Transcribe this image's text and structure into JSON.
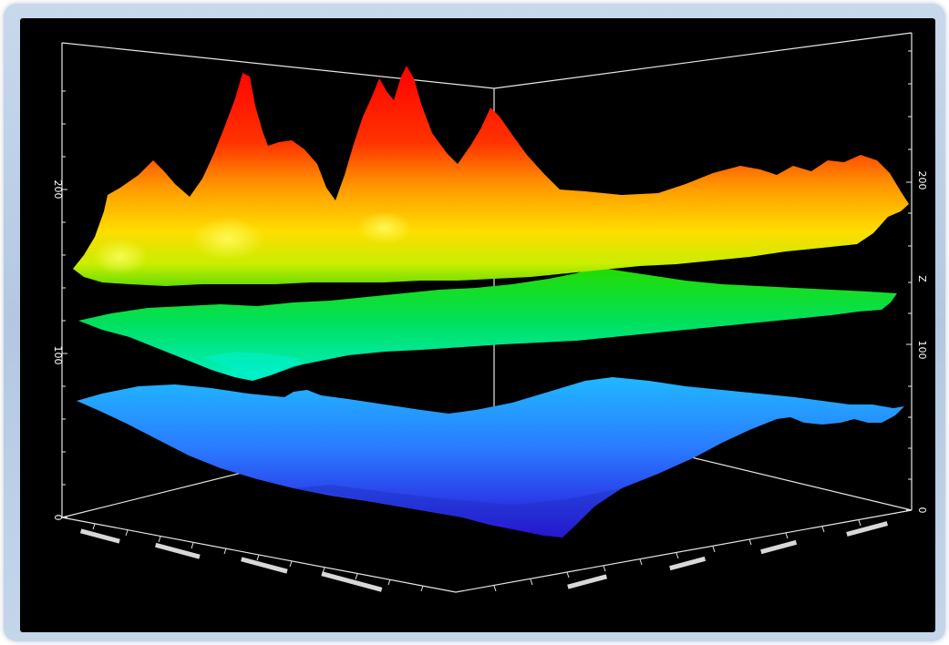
{
  "chart_data": {
    "type": "surface",
    "title": "",
    "surfaces": [
      {
        "name": "",
        "color_from": "#ffd400",
        "color_to": "#ff0000"
      },
      {
        "name": "",
        "color_from": "#00ffcc",
        "color_to": "#00cc00"
      },
      {
        "name": "",
        "color_from": "#2010d0",
        "color_to": "#20b0ff"
      }
    ],
    "z_axis": {
      "label": "Z",
      "range": [
        0,
        250
      ],
      "left_ticks": [
        "0",
        "100",
        "200"
      ],
      "right_ticks": [
        "0",
        "100",
        "200"
      ]
    },
    "x_axis": {
      "tick_labels": [
        "",
        "",
        "",
        ""
      ]
    },
    "y_axis": {
      "tick_labels": [
        "",
        "",
        "",
        ""
      ]
    },
    "grid": true
  }
}
